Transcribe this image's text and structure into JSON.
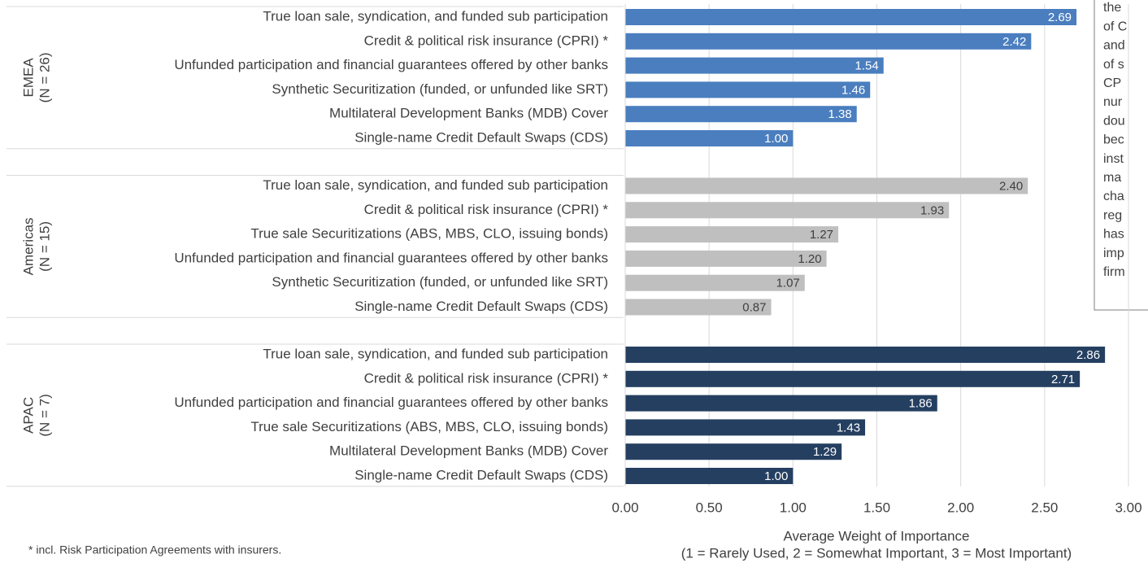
{
  "chart_data": {
    "type": "bar",
    "groups": [
      {
        "name": "EMEA",
        "count_label": "(N = 26)",
        "color": "#4a7ebf",
        "categories": [
          "True loan sale, syndication, and funded sub participation",
          "Credit & political risk insurance (CPRI) *",
          "Unfunded participation and financial guarantees offered by other banks",
          "Synthetic Securitization (funded, or unfunded like SRT)",
          "Multilateral Development Banks (MDB) Cover",
          "Single-name Credit Default Swaps (CDS)"
        ],
        "values": [
          2.69,
          2.42,
          1.54,
          1.46,
          1.38,
          1.0
        ],
        "value_labels": [
          "2.69",
          "2.42",
          "1.54",
          "1.46",
          "1.38",
          "1.00"
        ]
      },
      {
        "name": "Americas",
        "count_label": "(N = 15)",
        "color": "#bfbfbf",
        "categories": [
          "True loan sale, syndication, and funded sub participation",
          "Credit & political risk insurance (CPRI) *",
          "True sale Securitizations (ABS, MBS, CLO, issuing bonds)",
          "Unfunded participation and financial guarantees offered by other banks",
          "Synthetic Securitization (funded, or unfunded like SRT)",
          "Single-name Credit Default Swaps (CDS)"
        ],
        "values": [
          2.4,
          1.93,
          1.27,
          1.2,
          1.07,
          0.87
        ],
        "value_labels": [
          "2.40",
          "1.93",
          "1.27",
          "1.20",
          "1.07",
          "0.87"
        ]
      },
      {
        "name": "APAC",
        "count_label": "(N = 7)",
        "color": "#253f61",
        "categories": [
          "True loan sale, syndication, and funded sub participation",
          "Credit & political risk insurance (CPRI) *",
          "Unfunded participation and financial guarantees offered by other banks",
          "True sale Securitizations (ABS, MBS, CLO, issuing bonds)",
          "Multilateral Development Banks (MDB) Cover",
          "Single-name Credit Default Swaps (CDS)"
        ],
        "values": [
          2.86,
          2.71,
          1.86,
          1.43,
          1.29,
          1.0
        ],
        "value_labels": [
          "2.86",
          "2.71",
          "1.86",
          "1.43",
          "1.29",
          "1.00"
        ]
      }
    ],
    "xlim": [
      0,
      3
    ],
    "xticks": [
      {
        "value": 0,
        "label": "0.00"
      },
      {
        "value": 0.5,
        "label": "0.50"
      },
      {
        "value": 1,
        "label": "1.00"
      },
      {
        "value": 1.5,
        "label": "1.50"
      },
      {
        "value": 2,
        "label": "2.00"
      },
      {
        "value": 2.5,
        "label": "2.50"
      },
      {
        "value": 3,
        "label": "3.00"
      }
    ],
    "xlabel": "Average Weight of Importance",
    "xlabel_sub": "(1 = Rarely Used, 2 = Somewhat Important, 3 = Most Important)",
    "grid": true
  },
  "footnote": "* incl. Risk Participation Agreements with insurers.",
  "annotation": [
    "the",
    "of C",
    "and",
    "of s",
    "CP",
    "nur",
    "dou",
    "bec",
    "inst",
    "ma",
    "cha",
    "reg",
    "has",
    "imp",
    "firm"
  ]
}
